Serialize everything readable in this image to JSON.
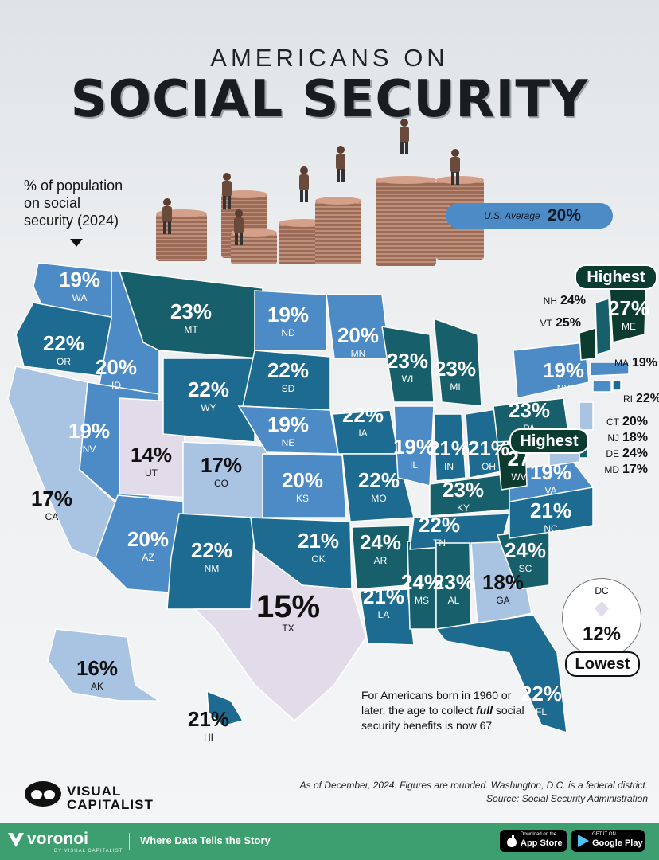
{
  "header": {
    "overline": "AMERICANS ON",
    "title": "SOCIAL SECURITY"
  },
  "legend": {
    "lines": [
      "% of population",
      "on social",
      "security (2024)"
    ]
  },
  "us_average": {
    "label": "U.S. Average",
    "value": "20%"
  },
  "callouts": {
    "highest": "Highest",
    "lowest": "Lowest"
  },
  "colors": {
    "lowest": "#e1dbea",
    "low": "#a9c3e2",
    "mid": "#4d8bc6",
    "high": "#1d6b90",
    "higher": "#17606b",
    "highest": "#0c3b2f"
  },
  "states": [
    {
      "code": "WA",
      "value": "19%"
    },
    {
      "code": "OR",
      "value": "22%"
    },
    {
      "code": "CA",
      "value": "17%"
    },
    {
      "code": "ID",
      "value": "20%"
    },
    {
      "code": "NV",
      "value": "19%"
    },
    {
      "code": "UT",
      "value": "14%"
    },
    {
      "code": "AZ",
      "value": "20%"
    },
    {
      "code": "MT",
      "value": "23%"
    },
    {
      "code": "WY",
      "value": "22%"
    },
    {
      "code": "CO",
      "value": "17%"
    },
    {
      "code": "NM",
      "value": "22%"
    },
    {
      "code": "ND",
      "value": "19%"
    },
    {
      "code": "SD",
      "value": "22%"
    },
    {
      "code": "NE",
      "value": "19%"
    },
    {
      "code": "KS",
      "value": "20%"
    },
    {
      "code": "OK",
      "value": "21%"
    },
    {
      "code": "TX",
      "value": "15%"
    },
    {
      "code": "MN",
      "value": "20%"
    },
    {
      "code": "IA",
      "value": "22%"
    },
    {
      "code": "MO",
      "value": "22%"
    },
    {
      "code": "AR",
      "value": "24%"
    },
    {
      "code": "LA",
      "value": "21%"
    },
    {
      "code": "WI",
      "value": "23%"
    },
    {
      "code": "IL",
      "value": "19%"
    },
    {
      "code": "MS",
      "value": "24%"
    },
    {
      "code": "MI",
      "value": "23%"
    },
    {
      "code": "IN",
      "value": "21%"
    },
    {
      "code": "KY",
      "value": "23%"
    },
    {
      "code": "TN",
      "value": "22%"
    },
    {
      "code": "AL",
      "value": "23%"
    },
    {
      "code": "OH",
      "value": "21%"
    },
    {
      "code": "GA",
      "value": "18%"
    },
    {
      "code": "FL",
      "value": "22%"
    },
    {
      "code": "SC",
      "value": "24%"
    },
    {
      "code": "NC",
      "value": "21%"
    },
    {
      "code": "VA",
      "value": "19%"
    },
    {
      "code": "WV",
      "value": "27"
    },
    {
      "code": "PA",
      "value": "23%"
    },
    {
      "code": "NY",
      "value": "19%"
    },
    {
      "code": "ME",
      "value": "27%"
    },
    {
      "code": "VT",
      "value": "25%"
    },
    {
      "code": "NH",
      "value": "24%"
    },
    {
      "code": "MA",
      "value": "19%"
    },
    {
      "code": "RI",
      "value": "22%"
    },
    {
      "code": "CT",
      "value": "20%"
    },
    {
      "code": "NJ",
      "value": "18%"
    },
    {
      "code": "DE",
      "value": "24%"
    },
    {
      "code": "MD",
      "value": "17%"
    },
    {
      "code": "AK",
      "value": "16%"
    },
    {
      "code": "HI",
      "value": "21%"
    }
  ],
  "dc": {
    "code": "DC",
    "value": "12%"
  },
  "footnote": {
    "pre": "For Americans born in 1960 or later, the age to collect ",
    "bold": "full",
    "post": " social security benefits is now 67"
  },
  "notes": {
    "line1": "As of December, 2024. Figures are rounded. Washington, D.C. is a federal district.",
    "line2": "Source: Social Security Administration"
  },
  "publisher": {
    "line1": "VISUAL",
    "line2": "CAPITALIST"
  },
  "footer": {
    "brand": "voronoi",
    "brand_sub": "BY VISUAL CAPITALIST",
    "tagline": "Where Data Tells the Story",
    "appstore_small": "Download on the",
    "appstore": "App Store",
    "googleplay_small": "GET IT ON",
    "googleplay": "Google Play"
  }
}
